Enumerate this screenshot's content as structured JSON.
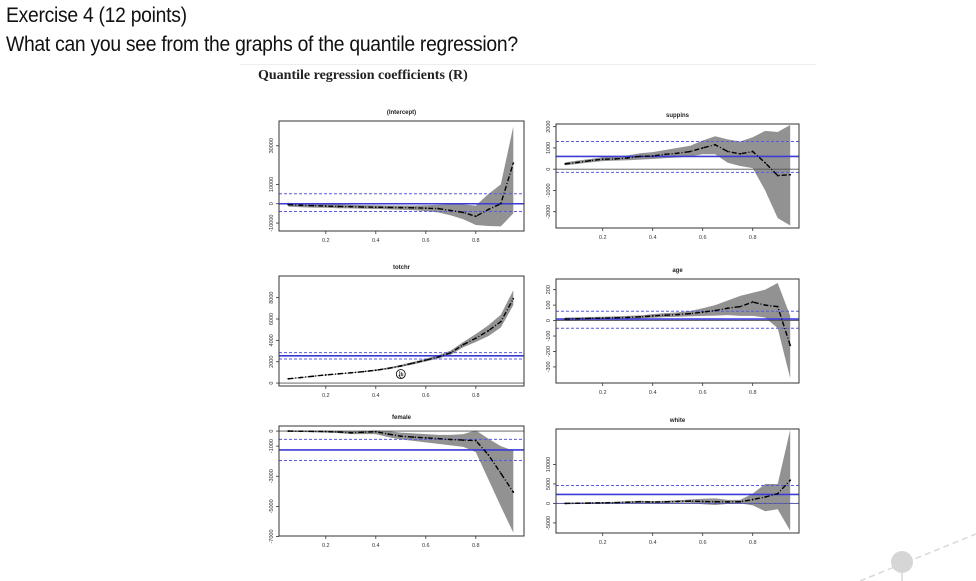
{
  "document": {
    "heading": "Exercise 4 (12 points)",
    "question": "What can you see from the graphs of the quantile regression?",
    "figure_title": "Quantile regression coefficients (R)"
  },
  "colors": {
    "band": "#8c8c8c",
    "estimate": "#000000",
    "ols": "#3b3bd6",
    "ols_ci": "#5a5ae0",
    "zero_line": "#555555"
  },
  "chart_data": [
    {
      "type": "line",
      "title": "(Intercept)",
      "xticks": [
        0.2,
        0.4,
        0.6,
        0.8
      ],
      "xlim": [
        0,
        1
      ],
      "yticks": [
        -10000,
        0,
        10000,
        30000
      ],
      "ylim": [
        -14100,
        42800
      ],
      "x": [
        0.05,
        0.1,
        0.15,
        0.2,
        0.25,
        0.3,
        0.35,
        0.4,
        0.45,
        0.5,
        0.55,
        0.6,
        0.65,
        0.7,
        0.75,
        0.8,
        0.85,
        0.9,
        0.95
      ],
      "estimate": [
        -500,
        -800,
        -1000,
        -1200,
        -1400,
        -1500,
        -1700,
        -1800,
        -1900,
        -2000,
        -2100,
        -2300,
        -2500,
        -3500,
        -4500,
        -6500,
        -3000,
        0,
        21000
      ],
      "lower": [
        -1500,
        -1800,
        -2000,
        -2100,
        -2300,
        -2400,
        -2600,
        -2700,
        -2900,
        -3100,
        -3300,
        -3800,
        -4500,
        -6000,
        -8000,
        -11000,
        -11500,
        -11700,
        -5000
      ],
      "upper": [
        500,
        200,
        0,
        -200,
        -400,
        -500,
        -700,
        -800,
        -900,
        -900,
        -900,
        -800,
        -500,
        -300,
        -300,
        -1000,
        5000,
        10000,
        40000
      ],
      "ols": 0,
      "ols_ci": [
        -4000,
        5200
      ]
    },
    {
      "type": "line",
      "title": "suppins",
      "xticks": [
        0.2,
        0.4,
        0.6,
        0.8
      ],
      "xlim": [
        0,
        1
      ],
      "yticks": [
        -2000,
        -1000,
        0,
        1000,
        2000
      ],
      "ylim": [
        -2766,
        2125
      ],
      "x": [
        0.05,
        0.1,
        0.15,
        0.2,
        0.25,
        0.3,
        0.35,
        0.4,
        0.45,
        0.5,
        0.55,
        0.6,
        0.65,
        0.7,
        0.75,
        0.8,
        0.85,
        0.9,
        0.95
      ],
      "estimate": [
        250,
        320,
        400,
        470,
        480,
        530,
        600,
        620,
        700,
        750,
        830,
        1000,
        1150,
        830,
        720,
        830,
        300,
        -300,
        -260
      ],
      "lower": [
        180,
        250,
        320,
        380,
        400,
        420,
        450,
        480,
        520,
        550,
        600,
        700,
        700,
        300,
        150,
        50,
        -1000,
        -2300,
        -2650
      ],
      "upper": [
        320,
        400,
        480,
        560,
        600,
        650,
        750,
        800,
        900,
        1000,
        1100,
        1350,
        1550,
        1400,
        1300,
        1500,
        1800,
        1750,
        2080
      ],
      "ols": 600,
      "ols_ci": [
        -150,
        1300
      ]
    },
    {
      "type": "line",
      "title": "totchr",
      "xticks": [
        0.2,
        0.4,
        0.6,
        0.8
      ],
      "xlim": [
        0,
        1
      ],
      "yticks": [
        0,
        2000,
        4000,
        6000,
        8000
      ],
      "ylim": [
        -275,
        10030
      ],
      "x": [
        0.05,
        0.1,
        0.15,
        0.2,
        0.25,
        0.3,
        0.35,
        0.4,
        0.45,
        0.5,
        0.55,
        0.6,
        0.65,
        0.7,
        0.75,
        0.8,
        0.85,
        0.9,
        0.95
      ],
      "estimate": [
        400,
        520,
        640,
        760,
        860,
        960,
        1070,
        1200,
        1380,
        1600,
        1870,
        2150,
        2450,
        2840,
        3600,
        4200,
        4900,
        5750,
        7900
      ],
      "lower": [
        370,
        480,
        600,
        720,
        820,
        910,
        1010,
        1130,
        1300,
        1500,
        1750,
        2020,
        2300,
        2650,
        3350,
        3850,
        4400,
        5200,
        7300
      ],
      "upper": [
        430,
        560,
        680,
        800,
        900,
        1010,
        1130,
        1270,
        1460,
        1700,
        1990,
        2280,
        2600,
        3050,
        3850,
        4600,
        5400,
        6400,
        8700
      ],
      "ols": 2550,
      "ols_ci": [
        2250,
        2850
      ]
    },
    {
      "type": "line",
      "title": "age",
      "xticks": [
        0.2,
        0.4,
        0.6,
        0.8
      ],
      "xlim": [
        0,
        1
      ],
      "yticks": [
        -300,
        -200,
        -100,
        0,
        100,
        200
      ],
      "ylim": [
        -404,
        269
      ],
      "x": [
        0.05,
        0.1,
        0.15,
        0.2,
        0.25,
        0.3,
        0.35,
        0.4,
        0.45,
        0.5,
        0.55,
        0.6,
        0.65,
        0.7,
        0.75,
        0.8,
        0.85,
        0.9,
        0.95
      ],
      "estimate": [
        10,
        12,
        14,
        16,
        18,
        20,
        24,
        30,
        35,
        39,
        45,
        55,
        65,
        80,
        90,
        120,
        100,
        90,
        -160
      ],
      "lower": [
        0,
        3,
        5,
        7,
        9,
        10,
        14,
        18,
        22,
        25,
        28,
        30,
        32,
        35,
        30,
        30,
        20,
        -50,
        -373
      ],
      "upper": [
        20,
        21,
        23,
        25,
        27,
        30,
        34,
        42,
        48,
        53,
        62,
        80,
        100,
        130,
        160,
        180,
        200,
        243,
        30
      ],
      "ols": 10,
      "ols_ci": [
        -50,
        60
      ]
    },
    {
      "type": "line",
      "title": "female",
      "xticks": [
        0.2,
        0.4,
        0.6,
        0.8
      ],
      "xlim": [
        0,
        1
      ],
      "yticks": [
        -7000,
        -5000,
        -3000,
        -1000,
        0
      ],
      "ylim": [
        -6966,
        337
      ],
      "x": [
        0.05,
        0.1,
        0.15,
        0.2,
        0.25,
        0.3,
        0.35,
        0.4,
        0.45,
        0.5,
        0.55,
        0.6,
        0.65,
        0.7,
        0.75,
        0.8,
        0.85,
        0.9,
        0.95
      ],
      "estimate": [
        0,
        -10,
        -20,
        -30,
        -60,
        -110,
        -80,
        -45,
        -200,
        -340,
        -400,
        -450,
        -500,
        -560,
        -600,
        -630,
        -1570,
        -2800,
        -4050
      ],
      "lower": [
        -50,
        -60,
        -80,
        -100,
        -140,
        -200,
        -200,
        -200,
        -400,
        -550,
        -650,
        -750,
        -850,
        -950,
        -1050,
        -1400,
        -3200,
        -5000,
        -6740
      ],
      "upper": [
        50,
        40,
        30,
        20,
        0,
        -30,
        0,
        50,
        0,
        -100,
        -150,
        -200,
        -250,
        -250,
        -200,
        50,
        -500,
        -1000,
        -1300
      ],
      "ols": -1250,
      "ols_ci": [
        -1950,
        -550
      ]
    },
    {
      "type": "line",
      "title": "white",
      "xticks": [
        0.2,
        0.4,
        0.6,
        0.8
      ],
      "xlim": [
        0,
        1
      ],
      "yticks": [
        -5000,
        0,
        5000,
        10000
      ],
      "ylim": [
        -7590,
        19100
      ],
      "x": [
        0.05,
        0.1,
        0.15,
        0.2,
        0.25,
        0.3,
        0.35,
        0.4,
        0.45,
        0.5,
        0.55,
        0.6,
        0.65,
        0.7,
        0.75,
        0.8,
        0.85,
        0.9,
        0.95
      ],
      "estimate": [
        0,
        50,
        100,
        150,
        200,
        300,
        430,
        350,
        400,
        500,
        600,
        500,
        430,
        400,
        430,
        1000,
        1640,
        2500,
        5950
      ],
      "lower": [
        -200,
        -150,
        -100,
        -50,
        0,
        50,
        150,
        100,
        100,
        200,
        200,
        -200,
        -400,
        -100,
        0,
        -500,
        -2000,
        -1500,
        -7000
      ],
      "upper": [
        200,
        250,
        300,
        350,
        400,
        550,
        700,
        600,
        700,
        800,
        1000,
        1200,
        1300,
        900,
        900,
        2500,
        5000,
        5000,
        18900
      ],
      "ols": 2300,
      "ols_ci": [
        0,
        4600
      ]
    }
  ]
}
